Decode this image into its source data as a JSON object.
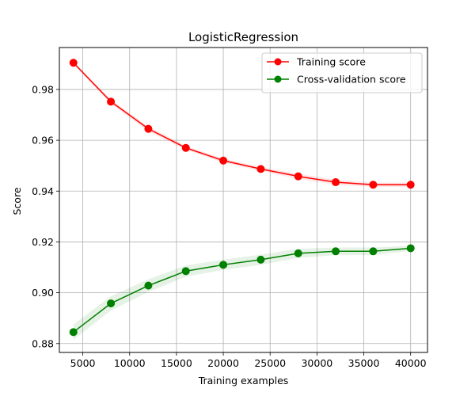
{
  "chart_data": {
    "type": "line",
    "title": "LogisticRegression",
    "xlabel": "Training examples",
    "ylabel": "Score",
    "xlim": [
      2500,
      41800
    ],
    "ylim": [
      0.8765,
      0.9965
    ],
    "grid": true,
    "legend": "top-right",
    "x_ticks": [
      5000,
      10000,
      15000,
      20000,
      25000,
      30000,
      35000,
      40000
    ],
    "y_ticks": [
      0.88,
      0.9,
      0.92,
      0.94,
      0.96,
      0.98
    ],
    "y_tick_labels": [
      "0.88",
      "0.90",
      "0.92",
      "0.94",
      "0.96",
      "0.98"
    ],
    "x": [
      4000,
      8000,
      12000,
      16000,
      20000,
      24000,
      28000,
      32000,
      36000,
      40000
    ],
    "series": [
      {
        "name": "Training score",
        "color": "#ff0000",
        "band_color": "#ff0000",
        "values": [
          0.9905,
          0.9752,
          0.9645,
          0.957,
          0.952,
          0.9487,
          0.9458,
          0.9435,
          0.9425,
          0.9425
        ],
        "band": [
          0.0005,
          0.0008,
          0.001,
          0.0008,
          0.0008,
          0.0008,
          0.001,
          0.001,
          0.0008,
          0.0008
        ]
      },
      {
        "name": "Cross-validation score",
        "color": "#008000",
        "band_color": "#008000",
        "values": [
          0.8845,
          0.8958,
          0.9028,
          0.9085,
          0.911,
          0.913,
          0.9155,
          0.9163,
          0.9163,
          0.9175
        ],
        "band": [
          0.003,
          0.0028,
          0.0025,
          0.0022,
          0.002,
          0.002,
          0.0018,
          0.0015,
          0.0015,
          0.001
        ]
      }
    ]
  }
}
